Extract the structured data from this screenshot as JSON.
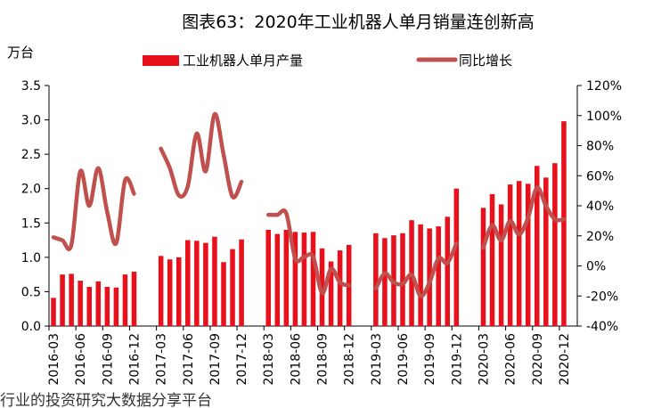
{
  "chart_data": {
    "type": "bar",
    "title": "图表63：2020年工业机器人单月销量连创新高",
    "left_unit": "万台",
    "footer": "行业的投资研究大数据分享平台",
    "colors": {
      "bar": "#e8101a",
      "line": "#c0504d"
    },
    "legend": {
      "bar_label": "工业机器人单月产量",
      "line_label": "同比增长",
      "placement": "top"
    },
    "categories": [
      "2016-03",
      "2016-04",
      "2016-05",
      "2016-06",
      "2016-07",
      "2016-08",
      "2016-09",
      "2016-10",
      "2016-11",
      "2016-12",
      "2017-03",
      "2017-04",
      "2017-05",
      "2017-06",
      "2017-07",
      "2017-08",
      "2017-09",
      "2017-10",
      "2017-11",
      "2017-12",
      "2018-03",
      "2018-04",
      "2018-05",
      "2018-06",
      "2018-07",
      "2018-08",
      "2018-09",
      "2018-10",
      "2018-11",
      "2018-12",
      "2019-03",
      "2019-04",
      "2019-05",
      "2019-06",
      "2019-07",
      "2019-08",
      "2019-09",
      "2019-10",
      "2019-11",
      "2019-12",
      "2020-03",
      "2020-04",
      "2020-05",
      "2020-06",
      "2020-07",
      "2020-08",
      "2020-09",
      "2020-10",
      "2020-11",
      "2020-12"
    ],
    "xtick_labels": [
      "2016-03",
      "2016-06",
      "2016-09",
      "2016-12",
      "2017-03",
      "2017-06",
      "2017-09",
      "2017-12",
      "2018-03",
      "2018-06",
      "2018-09",
      "2018-12",
      "2019-03",
      "2019-06",
      "2019-09",
      "2019-12",
      "2020-03",
      "2020-06",
      "2020-09",
      "2020-12"
    ],
    "series": [
      {
        "name": "工业机器人单月产量",
        "axis": "left",
        "values": [
          0.41,
          0.75,
          0.76,
          0.66,
          0.57,
          0.65,
          0.57,
          0.56,
          0.75,
          0.79,
          1.02,
          0.97,
          1.0,
          1.25,
          1.24,
          1.21,
          1.3,
          0.93,
          1.12,
          1.26,
          1.4,
          1.34,
          1.4,
          1.37,
          1.36,
          1.37,
          1.13,
          0.94,
          1.1,
          1.18,
          1.35,
          1.28,
          1.32,
          1.35,
          1.54,
          1.48,
          1.42,
          1.45,
          1.59,
          2.0,
          1.72,
          1.92,
          1.77,
          2.06,
          2.11,
          2.07,
          2.33,
          2.16,
          2.37,
          2.98
        ]
      },
      {
        "name": "同比增长",
        "axis": "right",
        "values": [
          0.19,
          0.17,
          0.14,
          0.63,
          0.4,
          0.65,
          0.36,
          0.15,
          0.57,
          0.48,
          0.78,
          0.65,
          0.47,
          0.53,
          0.88,
          0.63,
          1.01,
          0.74,
          0.46,
          0.56,
          0.34,
          0.34,
          0.35,
          0.05,
          0.06,
          0.06,
          -0.18,
          -0.02,
          -0.11,
          -0.13,
          -0.15,
          -0.05,
          -0.11,
          -0.12,
          -0.06,
          -0.2,
          -0.11,
          0.05,
          0.02,
          0.15,
          0.12,
          0.27,
          0.17,
          0.3,
          0.21,
          0.32,
          0.52,
          0.4,
          0.31,
          0.31
        ]
      }
    ],
    "ylim": [
      0,
      3.5
    ],
    "yticks": [
      0.0,
      0.5,
      1.0,
      1.5,
      2.0,
      2.5,
      3.0,
      3.5
    ],
    "ytick_labels": [
      "0.0",
      "0.5",
      "1.0",
      "1.5",
      "2.0",
      "2.5",
      "3.0",
      "3.5"
    ],
    "y2lim": [
      -0.4,
      1.2
    ],
    "y2ticks": [
      -0.4,
      -0.2,
      0,
      0.2,
      0.4,
      0.6,
      0.8,
      1.0,
      1.2
    ],
    "y2tick_labels": [
      "-40%",
      "-20%",
      "0%",
      "20%",
      "40%",
      "60%",
      "80%",
      "100%",
      "120%"
    ],
    "grid": false
  }
}
